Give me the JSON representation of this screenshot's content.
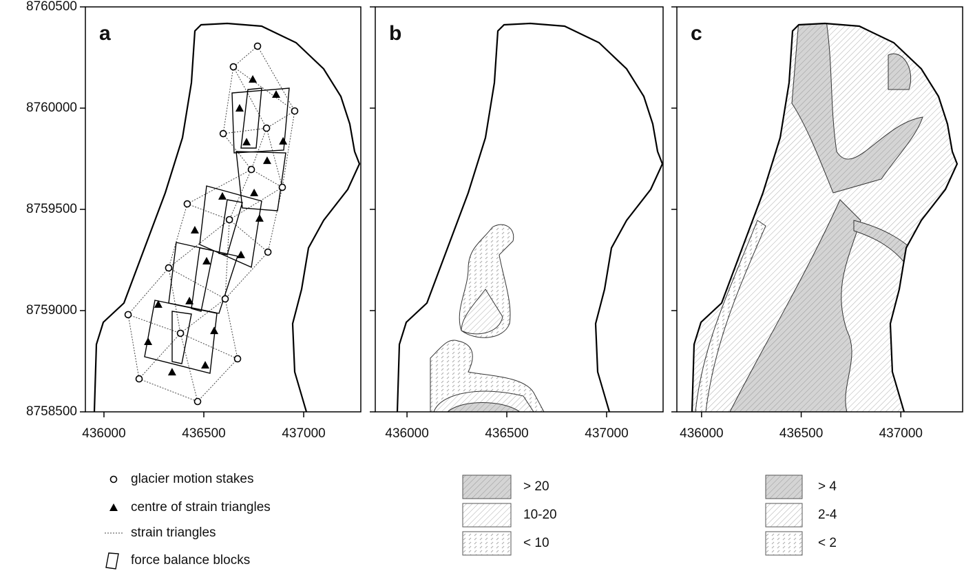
{
  "chart_data": [
    {
      "type": "map",
      "label": "a",
      "xlim": [
        435907,
        437286
      ],
      "ylim": [
        8758500,
        8760500
      ],
      "xticks": [
        436000,
        436500,
        437000
      ],
      "yticks": [
        8758500,
        8759000,
        8759500,
        8760000,
        8760500
      ],
      "ytick_labels": true,
      "series": [
        {
          "name": "glacier motion stakes",
          "marker": "circle",
          "x": [
            436769,
            436648,
            436955,
            436597,
            436814,
            436738,
            436893,
            436417,
            436628,
            436821,
            436324,
            436607,
            436121,
            436383,
            436669,
            436176,
            436469
          ],
          "y": [
            8760306,
            8760204,
            8759986,
            8759874,
            8759901,
            8759697,
            8759609,
            8759527,
            8759449,
            8759289,
            8759211,
            8759058,
            8758980,
            8758888,
            8758762,
            8758663,
            8758551
          ]
        },
        {
          "name": "centre of strain triangles",
          "marker": "triangle",
          "x": [
            436745,
            436862,
            436679,
            436714,
            436897,
            436817,
            436752,
            436593,
            436779,
            436455,
            436514,
            436686,
            436428,
            436272,
            436552,
            436221,
            436507,
            436341
          ],
          "y": [
            8760143,
            8760068,
            8760000,
            8759833,
            8759837,
            8759741,
            8759582,
            8759565,
            8759456,
            8759398,
            8759245,
            8759276,
            8759048,
            8759031,
            8758901,
            8758847,
            8758731,
            8758697
          ]
        }
      ],
      "legend_items": [
        "strain triangles",
        "force balance blocks"
      ]
    },
    {
      "type": "map",
      "label": "b",
      "xlim": [
        435841,
        437283
      ],
      "ylim": [
        8758500,
        8760500
      ],
      "xticks": [
        436000,
        436500,
        437000
      ],
      "yticks": [
        8758500,
        8759000,
        8759500,
        8760000,
        8760500
      ],
      "ytick_labels": false,
      "classes": [
        {
          "name": "> 20",
          "pattern": "dense"
        },
        {
          "name": "10-20",
          "pattern": "hatch"
        },
        {
          "name": "< 10",
          "pattern": "dash"
        }
      ]
    },
    {
      "type": "map",
      "label": "c",
      "xlim": [
        435876,
        437310
      ],
      "ylim": [
        8758500,
        8760500
      ],
      "xticks": [
        436000,
        436500,
        437000
      ],
      "yticks": [
        8758500,
        8759000,
        8759500,
        8760000,
        8760500
      ],
      "ytick_labels": false,
      "classes": [
        {
          "name": "> 4",
          "pattern": "dense"
        },
        {
          "name": "2-4",
          "pattern": "hatch"
        },
        {
          "name": "< 2",
          "pattern": "dash"
        }
      ]
    }
  ]
}
